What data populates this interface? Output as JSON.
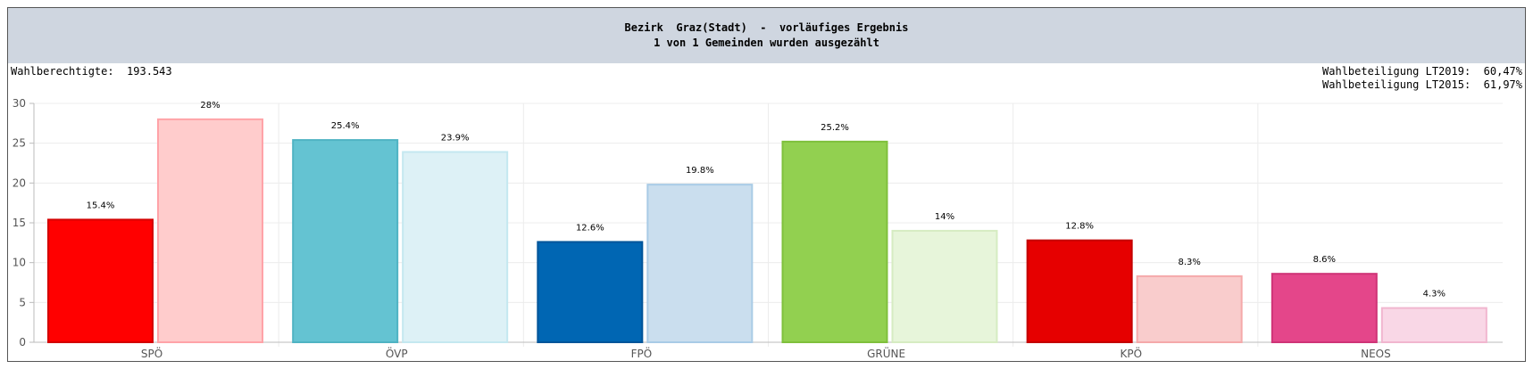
{
  "header": {
    "title": "Bezirk  Graz(Stadt)  -  vorläufiges Ergebnis",
    "subtitle": "1 von 1 Gemeinden wurden ausgezählt"
  },
  "stats": {
    "wahlberechtigte": "Wahlberechtigte:  193.543",
    "wahlbeteiligung_2019": "Wahlbeteiligung LT2019:  60,47%",
    "wahlbeteiligung_2015": "Wahlbeteiligung LT2015:  61,97%"
  },
  "chart_data": {
    "type": "bar",
    "categories": [
      "SPÖ",
      "ÖVP",
      "FPÖ",
      "GRÜNE",
      "KPÖ",
      "NEOS"
    ],
    "series": [
      {
        "values": [
          15.4,
          25.4,
          12.6,
          25.2,
          12.8,
          8.6
        ],
        "labels": [
          "15.4%",
          "25.4%",
          "12.6%",
          "25.2%",
          "12.8%",
          "8.6%"
        ],
        "colors": [
          "#ff0000",
          "#64c3d2",
          "#0066b3",
          "#92d050",
          "#e60000",
          "#e4468a"
        ],
        "borders": [
          "#d40000",
          "#4fb3c3",
          "#00559a",
          "#7fc03c",
          "#c40000",
          "#cf3477"
        ]
      },
      {
        "values": [
          28,
          23.9,
          19.8,
          14,
          8.3,
          4.3
        ],
        "labels": [
          "28%",
          "23.9%",
          "19.8%",
          "14%",
          "8.3%",
          "4.3%"
        ],
        "colors": [
          "#ffcccc",
          "#ddf1f6",
          "#cadeee",
          "#e7f5da",
          "#f9cccc",
          "#f9d7e6"
        ],
        "borders": [
          "#ffa3a8",
          "#c4e8f0",
          "#a9cbe6",
          "#d6ecc2",
          "#f5a9aa",
          "#f1b6cf"
        ]
      }
    ],
    "ylim": [
      0,
      30
    ],
    "yticks": [
      "0",
      "5",
      "10",
      "15",
      "20",
      "25",
      "30"
    ],
    "grid": true,
    "legend": "none"
  }
}
